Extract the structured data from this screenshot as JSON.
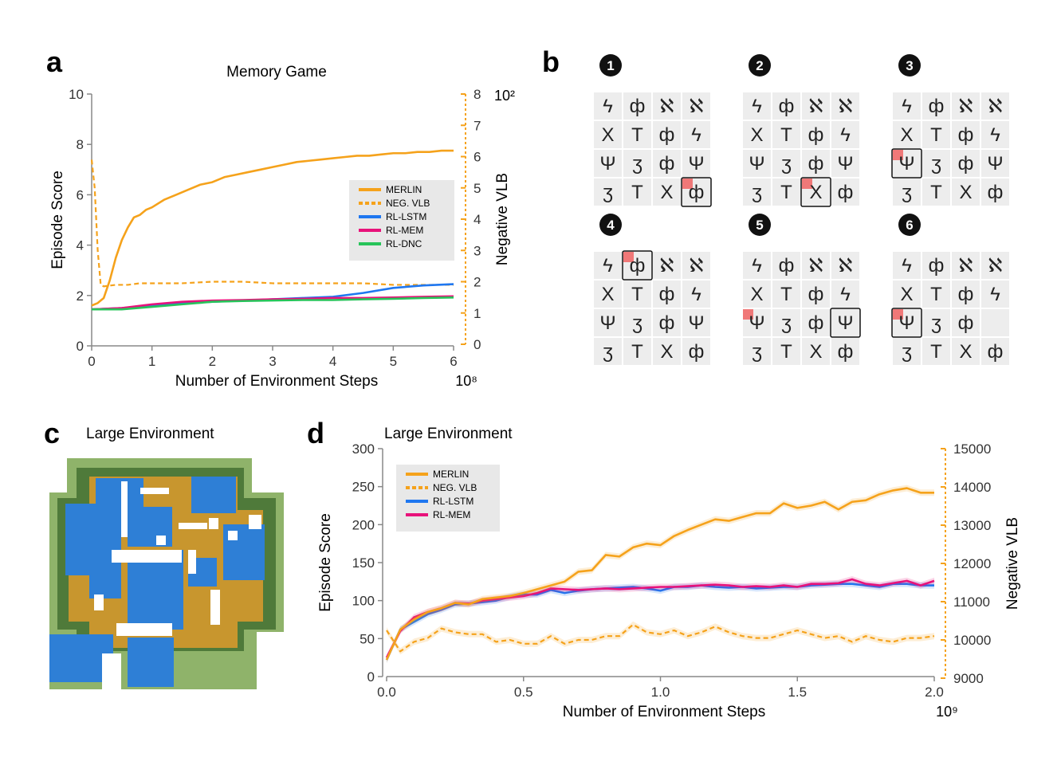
{
  "panels": {
    "a": {
      "letter": "a"
    },
    "b": {
      "letter": "b"
    },
    "c": {
      "letter": "c",
      "title": "Large Environment"
    },
    "d": {
      "letter": "d"
    }
  },
  "memory_grid": {
    "glyphs": [
      "ϟ",
      "ф",
      "ℵ",
      "ℵ",
      "X",
      "T",
      "ф",
      "ϟ",
      "Ψ",
      "ʒ",
      "ф",
      "Ψ",
      "ʒ",
      "T",
      "X",
      "ф"
    ],
    "steps": [
      {
        "label": "1",
        "selected": 15,
        "marked": 15,
        "empty": -1
      },
      {
        "label": "2",
        "selected": 14,
        "marked": 14,
        "empty": -1
      },
      {
        "label": "3",
        "selected": 8,
        "marked": 8,
        "empty": -1
      },
      {
        "label": "4",
        "selected": 1,
        "marked": 1,
        "empty": -1
      },
      {
        "label": "5",
        "selected": 11,
        "marked": 8,
        "empty": -1
      },
      {
        "label": "6",
        "selected": 8,
        "marked": 8,
        "empty": 11
      }
    ],
    "colors": {
      "tile": "#ededed",
      "marker": "#f07878",
      "glyph": "#222222",
      "frame": "#111111"
    }
  },
  "chart_data": [
    {
      "type": "line",
      "title": "Memory Game",
      "xlabel": "Number of Environment Steps",
      "x_exponent": "10⁸",
      "ylabel": "Episode Score",
      "y2label": "Negative VLB",
      "y2_exponent": "10²",
      "xlim": [
        0,
        6
      ],
      "ylim": [
        0,
        10
      ],
      "y2lim": [
        0,
        8
      ],
      "xticks": [
        "0",
        "1",
        "2",
        "3",
        "4",
        "5",
        "6"
      ],
      "yticks": [
        "0",
        "2",
        "4",
        "6",
        "8",
        "10"
      ],
      "y2ticks": [
        "0",
        "1",
        "2",
        "3",
        "4",
        "5",
        "6",
        "7",
        "8"
      ],
      "legend_position": "right",
      "legend": [
        "MERLIN",
        "NEG. VLB",
        "RL-LSTM",
        "RL-MEM",
        "RL-DNC"
      ],
      "series": [
        {
          "name": "MERLIN",
          "color": "#f5a21b",
          "dash": false,
          "axis": "left",
          "x": [
            0,
            0.1,
            0.2,
            0.3,
            0.4,
            0.5,
            0.6,
            0.7,
            0.8,
            0.9,
            1.0,
            1.2,
            1.4,
            1.6,
            1.8,
            2.0,
            2.2,
            2.4,
            2.6,
            2.8,
            3.0,
            3.2,
            3.4,
            3.6,
            3.8,
            4.0,
            4.2,
            4.4,
            4.6,
            4.8,
            5.0,
            5.2,
            5.4,
            5.6,
            5.8,
            6.0
          ],
          "y": [
            1.6,
            1.7,
            1.9,
            2.6,
            3.5,
            4.2,
            4.7,
            5.1,
            5.2,
            5.4,
            5.5,
            5.8,
            6.0,
            6.2,
            6.4,
            6.5,
            6.7,
            6.8,
            6.9,
            7.0,
            7.1,
            7.2,
            7.3,
            7.35,
            7.4,
            7.45,
            7.5,
            7.55,
            7.55,
            7.6,
            7.65,
            7.65,
            7.7,
            7.7,
            7.75,
            7.75
          ]
        },
        {
          "name": "NEG. VLB",
          "color": "#f5a21b",
          "dash": true,
          "axis": "right",
          "x": [
            0,
            0.05,
            0.1,
            0.15,
            0.2,
            0.4,
            0.6,
            0.8,
            1.0,
            1.5,
            2.0,
            2.5,
            3.0,
            3.5,
            4.0,
            4.5,
            5.0,
            5.5,
            6.0
          ],
          "y": [
            5.9,
            5.0,
            3.0,
            1.9,
            1.85,
            1.9,
            1.9,
            1.95,
            1.95,
            1.95,
            2.0,
            2.0,
            1.95,
            1.95,
            1.95,
            1.95,
            1.9,
            1.9,
            1.9
          ]
        },
        {
          "name": "RL-LSTM",
          "color": "#1f77f0",
          "dash": false,
          "axis": "left",
          "x": [
            0,
            0.5,
            1.0,
            1.5,
            2.0,
            2.5,
            3.0,
            3.5,
            4.0,
            4.5,
            5.0,
            5.5,
            6.0
          ],
          "y": [
            1.45,
            1.5,
            1.6,
            1.7,
            1.75,
            1.8,
            1.85,
            1.9,
            1.95,
            2.1,
            2.3,
            2.4,
            2.45
          ]
        },
        {
          "name": "RL-MEM",
          "color": "#e8127a",
          "dash": false,
          "axis": "left",
          "x": [
            0,
            0.5,
            1.0,
            1.5,
            2.0,
            2.5,
            3.0,
            3.5,
            4.0,
            4.5,
            5.0,
            5.5,
            6.0
          ],
          "y": [
            1.45,
            1.5,
            1.65,
            1.75,
            1.8,
            1.82,
            1.85,
            1.87,
            1.9,
            1.9,
            1.92,
            1.95,
            1.97
          ]
        },
        {
          "name": "RL-DNC",
          "color": "#27c45a",
          "dash": false,
          "axis": "left",
          "x": [
            0,
            0.5,
            1.0,
            1.5,
            2.0,
            2.5,
            3.0,
            3.5,
            4.0,
            4.5,
            5.0,
            5.5,
            6.0
          ],
          "y": [
            1.45,
            1.45,
            1.55,
            1.65,
            1.75,
            1.78,
            1.8,
            1.82,
            1.82,
            1.85,
            1.87,
            1.9,
            1.92
          ]
        }
      ]
    },
    {
      "type": "line",
      "title": "Large Environment",
      "xlabel": "Number of Environment Steps",
      "x_exponent": "10⁹",
      "ylabel": "Episode Score",
      "y2label": "Negative VLB",
      "xlim": [
        0,
        2
      ],
      "ylim": [
        0,
        300
      ],
      "y2lim": [
        9000,
        15000
      ],
      "xticks": [
        "0.0",
        "0.5",
        "1.0",
        "1.5",
        "2.0"
      ],
      "yticks": [
        "0",
        "50",
        "100",
        "150",
        "200",
        "250",
        "300"
      ],
      "y2ticks": [
        "9000",
        "10000",
        "11000",
        "12000",
        "13000",
        "14000",
        "15000"
      ],
      "legend_position": "top-left",
      "legend": [
        "MERLIN",
        "NEG. VLB",
        "RL-LSTM",
        "RL-MEM"
      ],
      "series": [
        {
          "name": "MERLIN",
          "color": "#f5a21b",
          "dash": false,
          "axis": "left",
          "x": [
            0,
            0.05,
            0.1,
            0.15,
            0.2,
            0.25,
            0.3,
            0.35,
            0.4,
            0.45,
            0.5,
            0.55,
            0.6,
            0.65,
            0.7,
            0.75,
            0.8,
            0.85,
            0.9,
            0.95,
            1.0,
            1.05,
            1.1,
            1.15,
            1.2,
            1.25,
            1.3,
            1.35,
            1.4,
            1.45,
            1.5,
            1.55,
            1.6,
            1.65,
            1.7,
            1.75,
            1.8,
            1.85,
            1.9,
            1.95,
            2.0
          ],
          "y": [
            22,
            62,
            75,
            85,
            90,
            97,
            95,
            102,
            104,
            106,
            110,
            115,
            120,
            125,
            138,
            140,
            160,
            158,
            170,
            175,
            173,
            185,
            193,
            200,
            207,
            205,
            210,
            215,
            215,
            228,
            222,
            225,
            230,
            220,
            230,
            232,
            240,
            245,
            248,
            242,
            242
          ]
        },
        {
          "name": "NEG. VLB",
          "color": "#f5a21b",
          "dash": true,
          "axis": "right",
          "x": [
            0,
            0.05,
            0.1,
            0.15,
            0.2,
            0.25,
            0.3,
            0.35,
            0.4,
            0.45,
            0.5,
            0.55,
            0.6,
            0.65,
            0.7,
            0.75,
            0.8,
            0.85,
            0.9,
            0.95,
            1.0,
            1.05,
            1.1,
            1.15,
            1.2,
            1.25,
            1.3,
            1.35,
            1.4,
            1.45,
            1.5,
            1.55,
            1.6,
            1.65,
            1.7,
            1.75,
            1.8,
            1.85,
            1.9,
            1.95,
            2.0
          ],
          "y": [
            10250,
            9700,
            9950,
            10050,
            10300,
            10200,
            10150,
            10150,
            9950,
            10000,
            9900,
            9900,
            10100,
            9900,
            10000,
            10000,
            10100,
            10100,
            10400,
            10200,
            10150,
            10250,
            10100,
            10200,
            10350,
            10200,
            10100,
            10050,
            10050,
            10150,
            10250,
            10150,
            10050,
            10100,
            9950,
            10100,
            10000,
            9950,
            10050,
            10050,
            10100
          ]
        },
        {
          "name": "RL-LSTM",
          "color": "#1f77f0",
          "dash": false,
          "axis": "left",
          "x": [
            0,
            0.05,
            0.1,
            0.15,
            0.2,
            0.25,
            0.3,
            0.35,
            0.4,
            0.45,
            0.5,
            0.55,
            0.6,
            0.65,
            0.7,
            0.75,
            0.8,
            0.85,
            0.9,
            0.95,
            1.0,
            1.05,
            1.1,
            1.15,
            1.2,
            1.25,
            1.3,
            1.35,
            1.4,
            1.45,
            1.5,
            1.55,
            1.6,
            1.65,
            1.7,
            1.75,
            1.8,
            1.85,
            1.9,
            1.95,
            2.0
          ],
          "y": [
            22,
            62,
            72,
            82,
            88,
            95,
            96,
            98,
            100,
            105,
            108,
            108,
            114,
            110,
            113,
            115,
            116,
            117,
            118,
            116,
            113,
            118,
            118,
            120,
            118,
            117,
            118,
            116,
            117,
            118,
            118,
            120,
            121,
            122,
            122,
            120,
            118,
            122,
            122,
            120,
            120
          ]
        },
        {
          "name": "RL-MEM",
          "color": "#e8127a",
          "dash": false,
          "axis": "left",
          "x": [
            0,
            0.05,
            0.1,
            0.15,
            0.2,
            0.25,
            0.3,
            0.35,
            0.4,
            0.45,
            0.5,
            0.55,
            0.6,
            0.65,
            0.7,
            0.75,
            0.8,
            0.85,
            0.9,
            0.95,
            1.0,
            1.05,
            1.1,
            1.15,
            1.2,
            1.25,
            1.3,
            1.35,
            1.4,
            1.45,
            1.5,
            1.55,
            1.6,
            1.65,
            1.7,
            1.75,
            1.8,
            1.85,
            1.9,
            1.95,
            2.0
          ],
          "y": [
            25,
            60,
            78,
            85,
            90,
            97,
            96,
            100,
            102,
            104,
            106,
            110,
            116,
            115,
            114,
            115,
            116,
            115,
            116,
            117,
            118,
            118,
            119,
            120,
            121,
            120,
            118,
            119,
            118,
            120,
            118,
            122,
            122,
            123,
            128,
            122,
            120,
            123,
            126,
            120,
            126
          ]
        }
      ]
    }
  ]
}
